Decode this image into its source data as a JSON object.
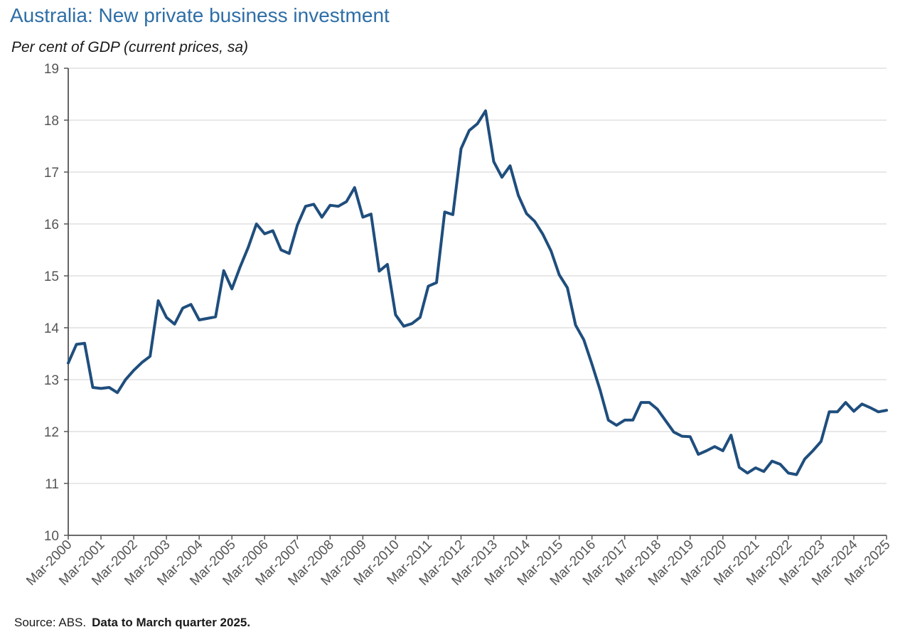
{
  "chart_data": {
    "type": "line",
    "title": "Australia: New private business investment",
    "subtitle": "Per cent of GDP (current prices, sa)",
    "ylim": [
      10,
      19
    ],
    "yticks": [
      10,
      11,
      12,
      13,
      14,
      15,
      16,
      17,
      18,
      19
    ],
    "xlim": [
      "Mar-2000",
      "Mar-2025"
    ],
    "xtick_labels": [
      "Mar-2000",
      "Mar-2001",
      "Mar-2002",
      "Mar-2003",
      "Mar-2004",
      "Mar-2005",
      "Mar-2006",
      "Mar-2007",
      "Mar-2008",
      "Mar-2009",
      "Mar-2010",
      "Mar-2011",
      "Mar-2012",
      "Mar-2013",
      "Mar-2014",
      "Mar-2015",
      "Mar-2016",
      "Mar-2017",
      "Mar-2018",
      "Mar-2019",
      "Mar-2020",
      "Mar-2021",
      "Mar-2022",
      "Mar-2023",
      "Mar-2024",
      "Mar-2025"
    ],
    "grid": true,
    "series": [
      {
        "color": "#1f4e7d",
        "x": [
          "Mar-2000",
          "Jun-2000",
          "Sep-2000",
          "Dec-2000",
          "Mar-2001",
          "Jun-2001",
          "Sep-2001",
          "Dec-2001",
          "Mar-2002",
          "Jun-2002",
          "Sep-2002",
          "Dec-2002",
          "Mar-2003",
          "Jun-2003",
          "Sep-2003",
          "Dec-2003",
          "Mar-2004",
          "Jun-2004",
          "Sep-2004",
          "Dec-2004",
          "Mar-2005",
          "Jun-2005",
          "Sep-2005",
          "Dec-2005",
          "Mar-2006",
          "Jun-2006",
          "Sep-2006",
          "Dec-2006",
          "Mar-2007",
          "Jun-2007",
          "Sep-2007",
          "Dec-2007",
          "Mar-2008",
          "Jun-2008",
          "Sep-2008",
          "Dec-2008",
          "Mar-2009",
          "Jun-2009",
          "Sep-2009",
          "Dec-2009",
          "Mar-2010",
          "Jun-2010",
          "Sep-2010",
          "Dec-2010",
          "Mar-2011",
          "Jun-2011",
          "Sep-2011",
          "Dec-2011",
          "Mar-2012",
          "Jun-2012",
          "Sep-2012",
          "Dec-2012",
          "Mar-2013",
          "Jun-2013",
          "Sep-2013",
          "Dec-2013",
          "Mar-2014",
          "Jun-2014",
          "Sep-2014",
          "Dec-2014",
          "Mar-2015",
          "Jun-2015",
          "Sep-2015",
          "Dec-2015",
          "Mar-2016",
          "Jun-2016",
          "Sep-2016",
          "Dec-2016",
          "Mar-2017",
          "Jun-2017",
          "Sep-2017",
          "Dec-2017",
          "Mar-2018",
          "Jun-2018",
          "Sep-2018",
          "Dec-2018",
          "Mar-2019",
          "Jun-2019",
          "Sep-2019",
          "Dec-2019",
          "Mar-2020",
          "Jun-2020",
          "Sep-2020",
          "Dec-2020",
          "Mar-2021",
          "Jun-2021",
          "Sep-2021",
          "Dec-2021",
          "Mar-2022",
          "Jun-2022",
          "Sep-2022",
          "Dec-2022",
          "Mar-2023",
          "Jun-2023",
          "Sep-2023",
          "Dec-2023",
          "Mar-2024",
          "Jun-2024",
          "Sep-2024",
          "Dec-2024",
          "Mar-2025"
        ],
        "values": [
          13.32,
          13.68,
          13.7,
          12.85,
          12.83,
          12.85,
          12.75,
          13.0,
          13.18,
          13.33,
          13.45,
          14.52,
          14.2,
          14.07,
          14.38,
          14.45,
          14.15,
          14.18,
          14.21,
          15.1,
          14.75,
          15.17,
          15.55,
          16.0,
          15.81,
          15.87,
          15.5,
          15.43,
          15.98,
          16.34,
          16.38,
          16.13,
          16.36,
          16.34,
          16.43,
          16.7,
          16.13,
          16.19,
          15.09,
          15.22,
          14.25,
          14.03,
          14.08,
          14.2,
          14.8,
          14.87,
          16.23,
          16.18,
          17.45,
          17.8,
          17.93,
          18.18,
          17.2,
          16.9,
          17.12,
          16.55,
          16.2,
          16.05,
          15.8,
          15.48,
          15.02,
          14.77,
          14.05,
          13.77,
          13.3,
          12.8,
          12.22,
          12.12,
          12.22,
          12.22,
          12.56,
          12.56,
          12.43,
          12.21,
          11.99,
          11.91,
          11.9,
          11.56,
          11.63,
          11.71,
          11.63,
          11.93,
          11.31,
          11.2,
          11.3,
          11.23,
          11.43,
          11.37,
          11.2,
          11.17,
          11.47,
          11.63,
          11.81,
          12.38,
          12.38,
          12.56,
          12.39,
          12.53,
          12.46,
          12.38,
          12.41
        ]
      }
    ]
  },
  "footer": {
    "source": "Source: ABS.",
    "note": "Data to March quarter 2025."
  }
}
